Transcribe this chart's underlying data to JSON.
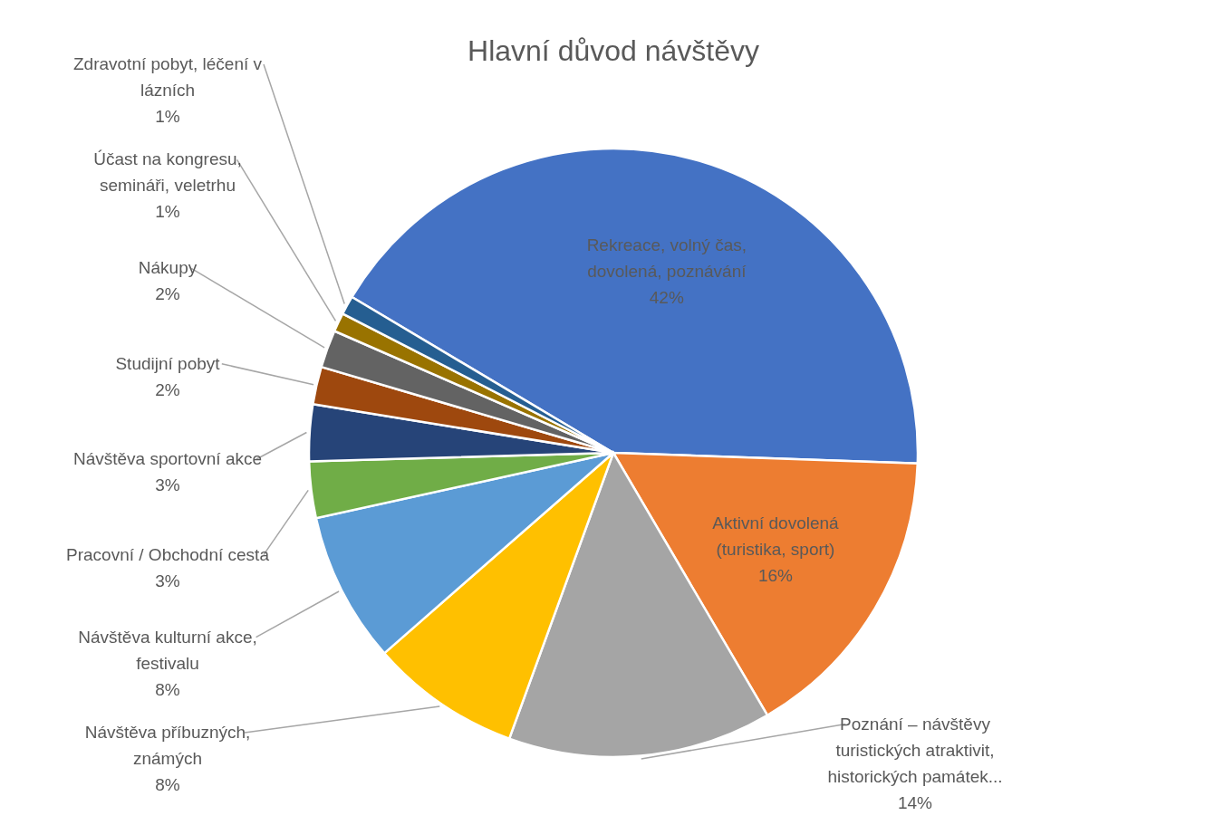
{
  "chart_data": {
    "type": "pie",
    "title": "Hlavní důvod návštěvy",
    "categories": [
      "Rekreace, volný čas, dovolená, poznávání",
      "Aktivní dovolená (turistika, sport)",
      "Poznání – návštěvy turistických atraktivit, historických památek...",
      "Návštěva příbuzných, známých",
      "Návštěva kulturní akce, festivalu",
      "Pracovní / Obchodní cesta",
      "Návštěva sportovní akce",
      "Studijní pobyt",
      "Nákupy",
      "Účast na kongresu, semináři, veletrhu",
      "Zdravotní pobyt, léčení v lázních"
    ],
    "values": [
      42,
      16,
      14,
      8,
      8,
      3,
      3,
      2,
      2,
      1,
      1
    ],
    "value_labels": [
      "42%",
      "16%",
      "14%",
      "8%",
      "8%",
      "3%",
      "3%",
      "2%",
      "2%",
      "1%",
      "1%"
    ],
    "colors": [
      "#4472c4",
      "#ed7d31",
      "#a5a5a5",
      "#ffc000",
      "#5b9bd5",
      "#70ad47",
      "#264478",
      "#9e480e",
      "#636363",
      "#997300",
      "#255e91"
    ]
  }
}
